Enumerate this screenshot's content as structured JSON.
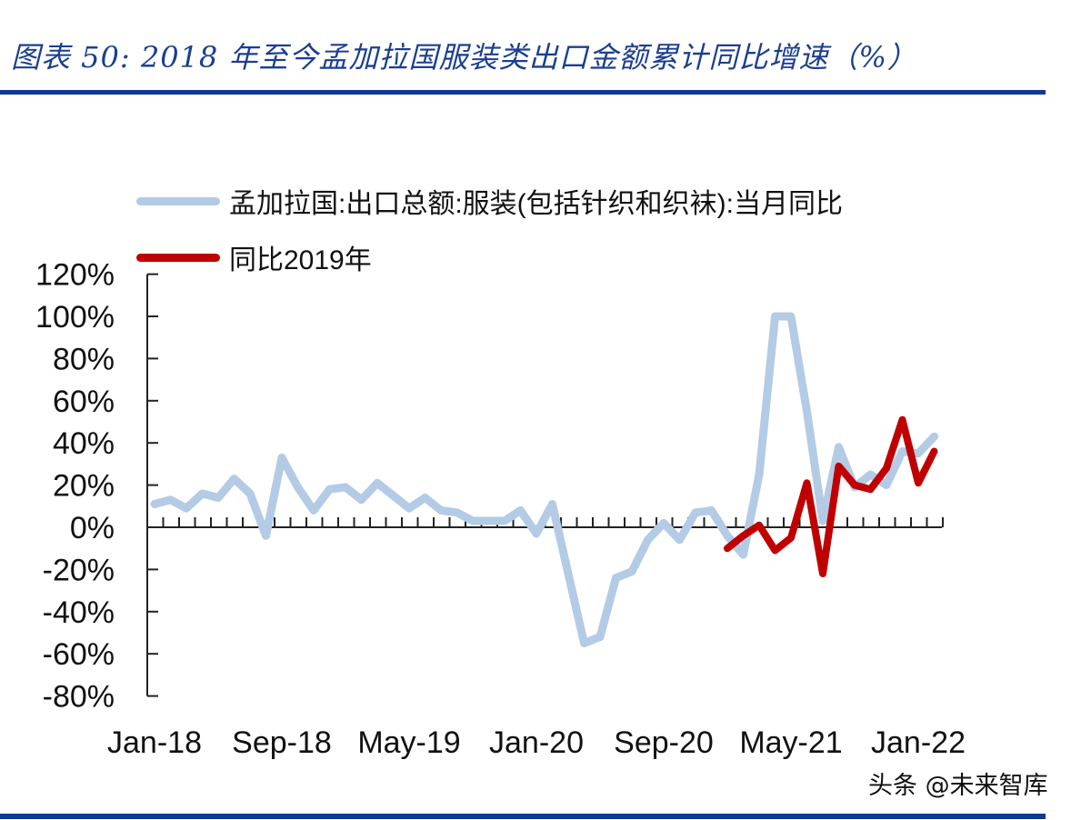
{
  "header": {
    "title": "图表 50:  2018 年至今孟加拉国服装类出口金额累计同比增速（%）"
  },
  "legend": {
    "items": [
      {
        "label": "孟加拉国:出口总额:服装(包括针织和织袜):当月同比",
        "color": "#b4cbe6"
      },
      {
        "label": "同比2019年",
        "color": "#c00000"
      }
    ]
  },
  "watermark": "头条 @未来智库",
  "chart_data": {
    "type": "line",
    "title": "2018年至今孟加拉国服装类出口金额累计同比增速（%）",
    "xlabel": "",
    "ylabel": "",
    "ylim": [
      -80,
      120
    ],
    "yticks": [
      "120%",
      "100%",
      "80%",
      "60%",
      "40%",
      "20%",
      "0%",
      "-20%",
      "-40%",
      "-60%",
      "-80%"
    ],
    "ytick_values": [
      120,
      100,
      80,
      60,
      40,
      20,
      0,
      -20,
      -40,
      -60,
      -80
    ],
    "xtick_labels": [
      "Jan-18",
      "Sep-18",
      "May-19",
      "Jan-20",
      "Sep-20",
      "May-21",
      "Jan-22"
    ],
    "grid": false,
    "legend_position": "top-left",
    "x": [
      "Jan-18",
      "Feb-18",
      "Mar-18",
      "Apr-18",
      "May-18",
      "Jun-18",
      "Jul-18",
      "Aug-18",
      "Sep-18",
      "Oct-18",
      "Nov-18",
      "Dec-18",
      "Jan-19",
      "Feb-19",
      "Mar-19",
      "Apr-19",
      "May-19",
      "Jun-19",
      "Jul-19",
      "Aug-19",
      "Sep-19",
      "Oct-19",
      "Nov-19",
      "Dec-19",
      "Jan-20",
      "Feb-20",
      "Mar-20",
      "Apr-20",
      "May-20",
      "Jun-20",
      "Jul-20",
      "Aug-20",
      "Sep-20",
      "Oct-20",
      "Nov-20",
      "Dec-20",
      "Jan-21",
      "Feb-21",
      "Mar-21",
      "Apr-21",
      "May-21",
      "Jun-21",
      "Jul-21",
      "Aug-21",
      "Sep-21",
      "Oct-21",
      "Nov-21",
      "Dec-21",
      "Jan-22",
      "Feb-22"
    ],
    "series": [
      {
        "name": "孟加拉国:出口总额:服装(包括针织和织袜):当月同比",
        "color": "#b4cbe6",
        "values": [
          11,
          13,
          9,
          16,
          14,
          23,
          16,
          -4,
          33,
          19,
          8,
          18,
          19,
          13,
          21,
          15,
          9,
          14,
          8,
          7,
          3,
          3,
          3,
          8,
          -3,
          11,
          -22,
          -55,
          -52,
          -24,
          -21,
          -6,
          2,
          -6,
          7,
          8,
          -4,
          -13,
          25,
          100,
          100,
          55,
          3,
          38,
          19,
          25,
          20,
          36,
          35,
          43
        ]
      },
      {
        "name": "同比2019年",
        "color": "#c00000",
        "values": [
          null,
          null,
          null,
          null,
          null,
          null,
          null,
          null,
          null,
          null,
          null,
          null,
          null,
          null,
          null,
          null,
          null,
          null,
          null,
          null,
          null,
          null,
          null,
          null,
          null,
          null,
          null,
          null,
          null,
          null,
          null,
          null,
          null,
          null,
          null,
          null,
          -10,
          -4,
          1,
          -11,
          -5,
          21,
          -22,
          29,
          20,
          18,
          28,
          51,
          21,
          36
        ]
      }
    ]
  }
}
